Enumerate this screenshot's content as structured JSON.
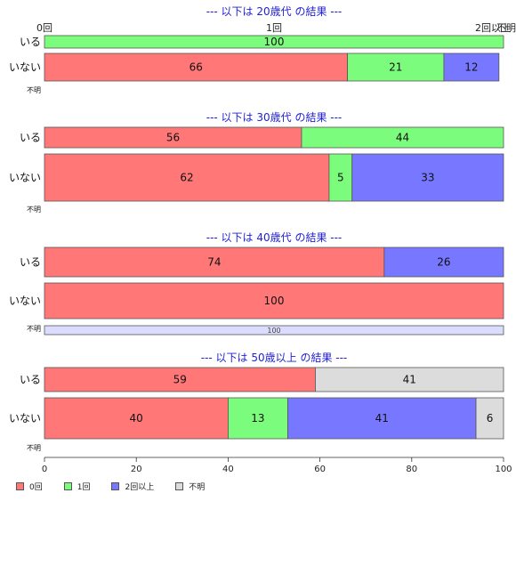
{
  "colors": {
    "zero": "#ff7777",
    "one": "#7cfc7c",
    "two_plus": "#7777ff",
    "unknown": "#dcdcdc",
    "unknown_light": "#dcdcff",
    "title": "#1f1fd6"
  },
  "top_axis_labels": [
    "0回",
    "1回",
    "2回以上",
    "不明"
  ],
  "chart_data": {
    "type": "bar",
    "orientation": "horizontal",
    "stacked": true,
    "xlim": [
      0,
      100
    ],
    "x_ticks": [
      0,
      20,
      40,
      60,
      80,
      100
    ],
    "series_names": [
      "0回",
      "1回",
      "2回以上",
      "不明"
    ],
    "groups": [
      {
        "title": "--- 以下は 20歳代 の結果 ---",
        "rows": [
          {
            "label": "いる",
            "values": [
              0,
              100,
              0,
              0
            ]
          },
          {
            "label": "いない",
            "values": [
              66,
              21,
              12,
              0
            ]
          },
          {
            "label": "不明",
            "values": []
          }
        ]
      },
      {
        "title": "--- 以下は 30歳代 の結果 ---",
        "rows": [
          {
            "label": "いる",
            "values": [
              56,
              44,
              0,
              0
            ]
          },
          {
            "label": "いない",
            "values": [
              62,
              5,
              33,
              0
            ]
          },
          {
            "label": "不明",
            "values": []
          }
        ]
      },
      {
        "title": "--- 以下は 40歳代 の結果 ---",
        "rows": [
          {
            "label": "いる",
            "values": [
              74,
              0,
              26,
              0
            ]
          },
          {
            "label": "いない",
            "values": [
              100,
              0,
              0,
              0
            ]
          },
          {
            "label": "不明",
            "values": [
              0,
              0,
              0,
              100
            ]
          }
        ]
      },
      {
        "title": "--- 以下は 50歳以上 の結果 ---",
        "rows": [
          {
            "label": "いる",
            "values": [
              59,
              0,
              0,
              41
            ]
          },
          {
            "label": "いない",
            "values": [
              40,
              13,
              41,
              6
            ]
          },
          {
            "label": "不明",
            "values": []
          }
        ]
      }
    ]
  },
  "legend": [
    {
      "label": "0回",
      "color": "#ff7777"
    },
    {
      "label": "1回",
      "color": "#7cfc7c"
    },
    {
      "label": "2回以上",
      "color": "#7777ff"
    },
    {
      "label": "不明",
      "color": "#dcdcdc"
    }
  ]
}
